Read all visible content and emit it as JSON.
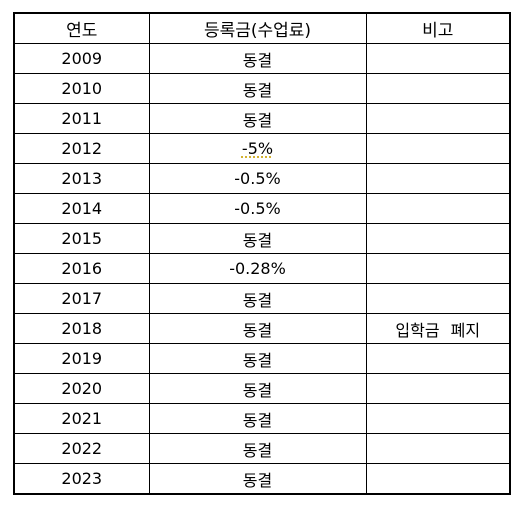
{
  "table": {
    "header": [
      "연도",
      "등록금(수업료)",
      "비고"
    ],
    "rows": [
      {
        "year": "2009",
        "fee": "동결"
      },
      {
        "year": "2010",
        "fee": "동결"
      },
      {
        "year": "2011",
        "fee": "동결"
      },
      {
        "year": "2012",
        "fee": "-5%"
      },
      {
        "year": "2013",
        "fee": "-0.5%"
      },
      {
        "year": "2014",
        "fee": "-0.5%"
      },
      {
        "year": "2015",
        "fee": "동결"
      },
      {
        "year": "2016",
        "fee": "-0.28%"
      },
      {
        "year": "2017",
        "fee": "동결"
      },
      {
        "year": "2018",
        "fee": "동결",
        "note": "입학금 폐지"
      },
      {
        "year": "2019",
        "fee": "동결"
      },
      {
        "year": "2020",
        "fee": "동결"
      },
      {
        "year": "2021",
        "fee": "동결"
      },
      {
        "year": "2022",
        "fee": "동결"
      },
      {
        "year": "2023",
        "fee": "동결"
      }
    ]
  }
}
